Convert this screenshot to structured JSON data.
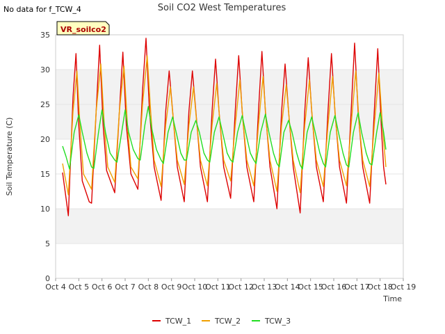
{
  "no_data_note": "No data for f_TCW_4",
  "site_badge": "VR_soilco2",
  "chart_data": {
    "type": "line",
    "title": "Soil CO2 West Temperatures",
    "xlabel": "Time",
    "ylabel": "Soil Temperature (C)",
    "ylim": [
      0,
      35
    ],
    "xlim": [
      4,
      19
    ],
    "yticks": [
      0,
      5,
      10,
      15,
      20,
      25,
      30,
      35
    ],
    "xticks": [
      4,
      5,
      6,
      7,
      8,
      9,
      10,
      11,
      12,
      13,
      14,
      15,
      16,
      17,
      18,
      19
    ],
    "xtick_labels": [
      "Oct 4",
      "Oct 5",
      "Oct 6",
      "Oct 7",
      "Oct 8",
      "Oct 9",
      "Oct 10",
      "Oct 11",
      "Oct 12",
      "Oct 13",
      "Oct 14",
      "Oct 15",
      "Oct 16",
      "Oct 17",
      "Oct 18",
      "Oct 19"
    ],
    "grid": true,
    "legend_position": "bottom-center",
    "series": [
      {
        "name": "TCW_1",
        "color": "#dd0000",
        "points": [
          [
            4.3,
            15.2
          ],
          [
            4.45,
            11.5
          ],
          [
            4.55,
            9.0
          ],
          [
            4.75,
            26
          ],
          [
            4.88,
            32.3
          ],
          [
            5.0,
            22
          ],
          [
            5.15,
            14
          ],
          [
            5.45,
            11
          ],
          [
            5.55,
            10.8
          ],
          [
            5.75,
            24
          ],
          [
            5.9,
            33.5
          ],
          [
            6.05,
            22
          ],
          [
            6.2,
            15.5
          ],
          [
            6.55,
            12.3
          ],
          [
            6.75,
            24
          ],
          [
            6.9,
            32.5
          ],
          [
            7.05,
            22
          ],
          [
            7.25,
            15
          ],
          [
            7.55,
            12.8
          ],
          [
            7.75,
            27
          ],
          [
            7.9,
            34.5
          ],
          [
            8.05,
            24
          ],
          [
            8.25,
            16
          ],
          [
            8.55,
            11.2
          ],
          [
            8.75,
            24
          ],
          [
            8.9,
            29.8
          ],
          [
            9.05,
            24
          ],
          [
            9.25,
            16
          ],
          [
            9.55,
            11
          ],
          [
            9.75,
            24
          ],
          [
            9.9,
            29.8
          ],
          [
            10.05,
            24
          ],
          [
            10.25,
            16
          ],
          [
            10.55,
            11
          ],
          [
            10.75,
            24
          ],
          [
            10.9,
            31.5
          ],
          [
            11.05,
            24
          ],
          [
            11.25,
            16
          ],
          [
            11.55,
            11.5
          ],
          [
            11.75,
            24
          ],
          [
            11.9,
            32
          ],
          [
            12.05,
            24
          ],
          [
            12.25,
            16
          ],
          [
            12.55,
            11
          ],
          [
            12.75,
            24
          ],
          [
            12.9,
            32.6
          ],
          [
            13.05,
            24
          ],
          [
            13.25,
            16
          ],
          [
            13.55,
            10
          ],
          [
            13.75,
            24
          ],
          [
            13.9,
            30.8
          ],
          [
            14.05,
            24
          ],
          [
            14.25,
            16
          ],
          [
            14.55,
            9.4
          ],
          [
            14.75,
            24
          ],
          [
            14.9,
            31.7
          ],
          [
            15.05,
            24
          ],
          [
            15.25,
            16
          ],
          [
            15.55,
            11
          ],
          [
            15.75,
            24
          ],
          [
            15.9,
            32.3
          ],
          [
            16.05,
            24
          ],
          [
            16.25,
            16
          ],
          [
            16.55,
            10.8
          ],
          [
            16.75,
            24
          ],
          [
            16.9,
            33.8
          ],
          [
            17.05,
            24
          ],
          [
            17.25,
            16
          ],
          [
            17.55,
            10.8
          ],
          [
            17.75,
            24
          ],
          [
            17.9,
            33
          ],
          [
            18.05,
            22
          ],
          [
            18.15,
            16
          ],
          [
            18.25,
            13.5
          ]
        ]
      },
      {
        "name": "TCW_2",
        "color": "#f0a000",
        "points": [
          [
            4.3,
            16.5
          ],
          [
            4.55,
            12.0
          ],
          [
            4.75,
            24
          ],
          [
            4.92,
            29.8
          ],
          [
            5.05,
            22
          ],
          [
            5.2,
            15
          ],
          [
            5.55,
            12.8
          ],
          [
            5.75,
            24
          ],
          [
            5.95,
            30.8
          ],
          [
            6.1,
            22
          ],
          [
            6.25,
            16
          ],
          [
            6.55,
            13.8
          ],
          [
            6.75,
            24
          ],
          [
            6.95,
            30.5
          ],
          [
            7.1,
            22
          ],
          [
            7.25,
            16
          ],
          [
            7.55,
            14.3
          ],
          [
            7.75,
            25
          ],
          [
            7.95,
            32
          ],
          [
            8.1,
            24
          ],
          [
            8.25,
            17
          ],
          [
            8.55,
            13.2
          ],
          [
            8.75,
            22
          ],
          [
            8.95,
            27.5
          ],
          [
            9.1,
            22
          ],
          [
            9.25,
            17
          ],
          [
            9.55,
            13.5
          ],
          [
            9.75,
            22
          ],
          [
            9.95,
            27.5
          ],
          [
            10.1,
            22
          ],
          [
            10.25,
            17
          ],
          [
            10.55,
            13.3
          ],
          [
            10.75,
            22
          ],
          [
            10.95,
            28
          ],
          [
            11.1,
            22
          ],
          [
            11.25,
            17
          ],
          [
            11.55,
            14
          ],
          [
            11.75,
            22
          ],
          [
            11.95,
            28.5
          ],
          [
            12.1,
            22
          ],
          [
            12.25,
            17
          ],
          [
            12.55,
            13.3
          ],
          [
            12.75,
            22
          ],
          [
            12.95,
            29
          ],
          [
            13.1,
            22
          ],
          [
            13.25,
            17
          ],
          [
            13.55,
            12.5
          ],
          [
            13.75,
            22
          ],
          [
            13.95,
            27.8
          ],
          [
            14.1,
            22
          ],
          [
            14.25,
            17
          ],
          [
            14.55,
            12.3
          ],
          [
            14.75,
            22
          ],
          [
            14.95,
            28.5
          ],
          [
            15.1,
            22
          ],
          [
            15.25,
            17
          ],
          [
            15.55,
            13.2
          ],
          [
            15.75,
            22
          ],
          [
            15.95,
            29
          ],
          [
            16.1,
            22
          ],
          [
            16.25,
            17
          ],
          [
            16.55,
            13.3
          ],
          [
            16.75,
            22
          ],
          [
            16.95,
            29.8
          ],
          [
            17.1,
            22
          ],
          [
            17.25,
            17
          ],
          [
            17.55,
            13.2
          ],
          [
            17.75,
            22
          ],
          [
            17.95,
            29.5
          ],
          [
            18.1,
            22
          ],
          [
            18.2,
            18
          ],
          [
            18.25,
            16
          ]
        ]
      },
      {
        "name": "TCW_3",
        "color": "#22dd22",
        "points": [
          [
            4.3,
            19
          ],
          [
            4.45,
            17.5
          ],
          [
            4.6,
            15.7
          ],
          [
            4.8,
            21
          ],
          [
            5.0,
            23.5
          ],
          [
            5.15,
            21
          ],
          [
            5.35,
            18
          ],
          [
            5.55,
            16
          ],
          [
            5.65,
            15.8
          ],
          [
            5.85,
            21
          ],
          [
            6.0,
            24.2
          ],
          [
            6.15,
            21
          ],
          [
            6.35,
            18
          ],
          [
            6.55,
            17
          ],
          [
            6.65,
            16.7
          ],
          [
            6.85,
            21
          ],
          [
            7.0,
            24.2
          ],
          [
            7.15,
            21
          ],
          [
            7.35,
            18.5
          ],
          [
            7.55,
            17.2
          ],
          [
            7.65,
            17
          ],
          [
            7.85,
            22
          ],
          [
            8.0,
            24.7
          ],
          [
            8.15,
            21.5
          ],
          [
            8.35,
            18.5
          ],
          [
            8.55,
            17
          ],
          [
            8.65,
            16.5
          ],
          [
            8.85,
            21
          ],
          [
            9.05,
            23.2
          ],
          [
            9.2,
            21
          ],
          [
            9.4,
            18
          ],
          [
            9.55,
            17
          ],
          [
            9.65,
            17
          ],
          [
            9.85,
            21
          ],
          [
            10.05,
            22.7
          ],
          [
            10.2,
            21
          ],
          [
            10.4,
            18
          ],
          [
            10.55,
            17
          ],
          [
            10.65,
            16.7
          ],
          [
            10.85,
            21
          ],
          [
            11.05,
            23.2
          ],
          [
            11.2,
            21
          ],
          [
            11.4,
            18
          ],
          [
            11.55,
            17
          ],
          [
            11.65,
            16.7
          ],
          [
            11.85,
            21
          ],
          [
            12.05,
            23.4
          ],
          [
            12.2,
            21
          ],
          [
            12.4,
            18
          ],
          [
            12.55,
            17
          ],
          [
            12.65,
            16.5
          ],
          [
            12.85,
            21
          ],
          [
            13.05,
            23.6
          ],
          [
            13.2,
            21
          ],
          [
            13.4,
            18
          ],
          [
            13.55,
            16.5
          ],
          [
            13.65,
            16
          ],
          [
            13.85,
            21
          ],
          [
            14.05,
            22.7
          ],
          [
            14.2,
            21
          ],
          [
            14.4,
            18
          ],
          [
            14.55,
            16.3
          ],
          [
            14.65,
            15.7
          ],
          [
            14.85,
            21
          ],
          [
            15.05,
            23.2
          ],
          [
            15.2,
            21
          ],
          [
            15.4,
            18
          ],
          [
            15.55,
            16.5
          ],
          [
            15.65,
            16
          ],
          [
            15.85,
            21
          ],
          [
            16.05,
            23.4
          ],
          [
            16.2,
            21
          ],
          [
            16.4,
            18
          ],
          [
            16.55,
            16.3
          ],
          [
            16.65,
            16
          ],
          [
            16.85,
            21
          ],
          [
            17.05,
            23.8
          ],
          [
            17.2,
            21
          ],
          [
            17.4,
            18
          ],
          [
            17.55,
            16.5
          ],
          [
            17.65,
            16.3
          ],
          [
            17.85,
            21
          ],
          [
            18.0,
            23.8
          ],
          [
            18.15,
            21
          ],
          [
            18.25,
            18.5
          ]
        ]
      }
    ]
  }
}
